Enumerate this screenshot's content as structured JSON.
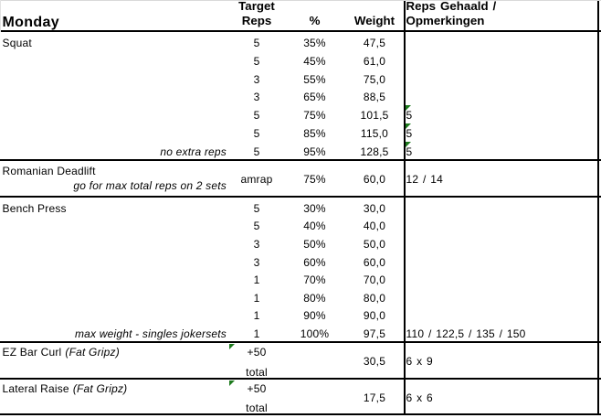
{
  "header": {
    "day": "Monday",
    "reps_line1": "Target",
    "reps_line2": "Reps",
    "pct": "%",
    "weight": "Weight",
    "notes_line1": "Reps Gehaald /",
    "notes_line2": "Opmerkingen"
  },
  "colors": {
    "border": "#000000",
    "flag_green": "#1e7b1e",
    "gridline": "#d9d9d9"
  },
  "sections": [
    {
      "type": "sets",
      "exercise": "Squat",
      "rows": [
        {
          "reps": "5",
          "pct": "35%",
          "weight": "47,5",
          "result": "",
          "flag": false,
          "note": ""
        },
        {
          "reps": "5",
          "pct": "45%",
          "weight": "61,0",
          "result": "",
          "flag": false,
          "note": ""
        },
        {
          "reps": "3",
          "pct": "55%",
          "weight": "75,0",
          "result": "",
          "flag": false,
          "note": ""
        },
        {
          "reps": "3",
          "pct": "65%",
          "weight": "88,5",
          "result": "",
          "flag": false,
          "note": ""
        },
        {
          "reps": "5",
          "pct": "75%",
          "weight": "101,5",
          "result": "5",
          "flag": true,
          "note": ""
        },
        {
          "reps": "5",
          "pct": "85%",
          "weight": "115,0",
          "result": "5",
          "flag": true,
          "note": ""
        },
        {
          "reps": "5",
          "pct": "95%",
          "weight": "128,5",
          "result": "5",
          "flag": true,
          "note": "no extra reps"
        }
      ]
    },
    {
      "type": "amrap",
      "exercise": "Romanian Deadlift",
      "note": "go for max total reps on 2 sets",
      "reps": "amrap",
      "pct": "75%",
      "weight": "60,0",
      "result": "12 / 14"
    },
    {
      "type": "sets",
      "exercise": "Bench Press",
      "rows": [
        {
          "reps": "5",
          "pct": "30%",
          "weight": "30,0",
          "result": "",
          "flag": false,
          "note": ""
        },
        {
          "reps": "5",
          "pct": "40%",
          "weight": "40,0",
          "result": "",
          "flag": false,
          "note": ""
        },
        {
          "reps": "3",
          "pct": "50%",
          "weight": "50,0",
          "result": "",
          "flag": false,
          "note": ""
        },
        {
          "reps": "3",
          "pct": "60%",
          "weight": "60,0",
          "result": "",
          "flag": false,
          "note": ""
        },
        {
          "reps": "1",
          "pct": "70%",
          "weight": "70,0",
          "result": "",
          "flag": false,
          "note": ""
        },
        {
          "reps": "1",
          "pct": "80%",
          "weight": "80,0",
          "result": "",
          "flag": false,
          "note": ""
        },
        {
          "reps": "1",
          "pct": "90%",
          "weight": "90,0",
          "result": "",
          "flag": false,
          "note": ""
        },
        {
          "reps": "1",
          "pct": "100%",
          "weight": "97,5",
          "result": "110 / 122,5 / 135 / 150",
          "flag": false,
          "note": "max weight - singles jokersets"
        }
      ]
    },
    {
      "type": "accessory",
      "exercise": "EZ Bar Curl",
      "exercise_suffix": "(Fat Gripz)",
      "reps_top": "+50",
      "reps_bottom": "total",
      "weight": "30,5",
      "result": "6 x 9",
      "flag": true
    },
    {
      "type": "accessory",
      "exercise": "Lateral Raise",
      "exercise_suffix": "(Fat Gripz)",
      "reps_top": "+50",
      "reps_bottom": "total",
      "weight": "17,5",
      "result": "6 x 6",
      "flag": true
    }
  ]
}
